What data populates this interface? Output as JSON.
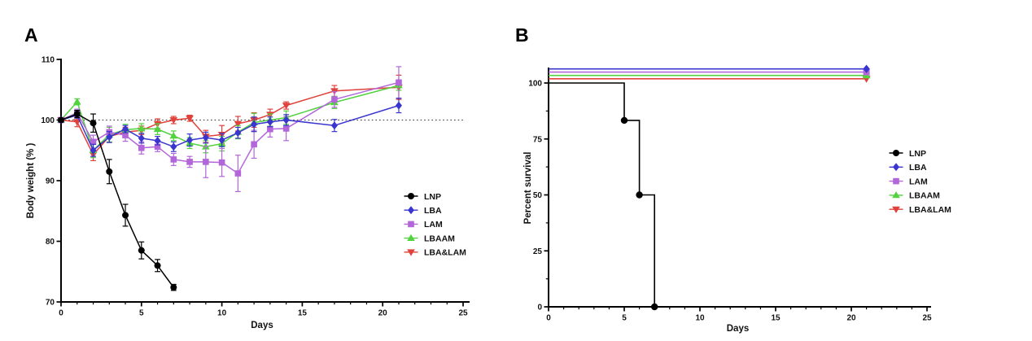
{
  "figure": {
    "panel_a_label": "A",
    "panel_b_label": "B"
  },
  "chart_data": [
    {
      "id": "panel-a",
      "type": "line",
      "title": "",
      "xlabel": "Days",
      "ylabel": "Body weight (% )",
      "xlim": [
        0,
        25
      ],
      "ylim": [
        70,
        110
      ],
      "x_major_ticks": [
        0,
        5,
        10,
        15,
        20,
        25
      ],
      "x_minor_step": 1,
      "y_major_ticks": [
        70,
        80,
        90,
        100,
        110
      ],
      "reference_line_y": 100,
      "grid": false,
      "legend_position": "inside-right",
      "legend": [
        "LNP",
        "LBA",
        "LAM",
        "LBAAM",
        "LBA&LAM"
      ],
      "series": [
        {
          "name": "LNP",
          "marker": "circle",
          "color": "#000000",
          "x": [
            0,
            1,
            2,
            3,
            4,
            5,
            6,
            7
          ],
          "y": [
            100,
            101,
            99.5,
            91.5,
            84.3,
            78.5,
            76,
            72.4
          ],
          "err": [
            0.3,
            0.6,
            1.5,
            2.0,
            1.8,
            1.4,
            1.0,
            0.5
          ]
        },
        {
          "name": "LBA",
          "marker": "diamond",
          "color": "#3a35cf",
          "x": [
            0,
            1,
            2,
            3,
            4,
            5,
            6,
            7,
            8,
            9,
            10,
            11,
            12,
            13,
            14,
            17,
            21
          ],
          "y": [
            100,
            100.8,
            95.0,
            97.2,
            98.5,
            97.0,
            96.6,
            95.6,
            96.7,
            97.1,
            96.7,
            97.9,
            99.3,
            99.7,
            100.0,
            99.1,
            102.4
          ],
          "err": [
            0.3,
            0.5,
            1.0,
            0.9,
            0.6,
            0.8,
            0.7,
            0.8,
            1.0,
            0.9,
            1.1,
            0.9,
            1.2,
            0.8,
            0.9,
            1.0,
            1.2
          ]
        },
        {
          "name": "LAM",
          "marker": "square",
          "color": "#b266d9",
          "x": [
            0,
            1,
            2,
            3,
            4,
            5,
            6,
            7,
            8,
            9,
            10,
            11,
            12,
            13,
            14,
            17,
            21
          ],
          "y": [
            100,
            101.2,
            96.4,
            98.0,
            97.5,
            95.4,
            95.6,
            93.5,
            93.1,
            93.1,
            93.0,
            91.2,
            96.0,
            98.5,
            98.6,
            103.4,
            106.2
          ],
          "err": [
            0.3,
            0.6,
            1.1,
            1.0,
            1.0,
            1.0,
            0.8,
            1.0,
            0.9,
            2.6,
            2.3,
            3.0,
            2.3,
            1.3,
            2.0,
            1.3,
            2.6
          ]
        },
        {
          "name": "LBAAM",
          "marker": "triangle-up",
          "color": "#52d23e",
          "x": [
            0,
            1,
            2,
            3,
            4,
            5,
            6,
            7,
            8,
            9,
            10,
            11,
            12,
            13,
            14,
            17,
            21
          ],
          "y": [
            100,
            103.0,
            95.0,
            97.6,
            98.4,
            98.6,
            98.5,
            97.4,
            96.2,
            95.6,
            96.1,
            98.0,
            99.6,
            100.0,
            100.4,
            102.9,
            105.7
          ],
          "err": [
            0.3,
            0.5,
            1.2,
            1.2,
            0.9,
            0.8,
            0.9,
            0.8,
            0.9,
            1.0,
            1.2,
            1.1,
            1.5,
            1.0,
            1.1,
            1.0,
            0.8
          ]
        },
        {
          "name": "LBA&LAM",
          "marker": "triangle-down",
          "color": "#e0413a",
          "x": [
            0,
            1,
            2,
            3,
            4,
            5,
            6,
            7,
            8,
            9,
            10,
            11,
            12,
            13,
            14,
            17,
            21
          ],
          "y": [
            100,
            99.7,
            94.3,
            97.3,
            98.0,
            98.3,
            99.4,
            100.0,
            100.3,
            97.3,
            97.6,
            99.4,
            100.0,
            100.9,
            102.4,
            104.8,
            105.4
          ],
          "err": [
            0.3,
            0.8,
            1.0,
            1.0,
            0.8,
            0.7,
            0.8,
            0.6,
            0.5,
            1.0,
            1.5,
            1.2,
            1.2,
            0.9,
            0.6,
            0.9,
            2.0
          ]
        }
      ]
    },
    {
      "id": "panel-b",
      "type": "line",
      "title": "",
      "xlabel": "Days",
      "ylabel": "Percent survival",
      "xlim": [
        0,
        25
      ],
      "ylim": [
        0,
        100
      ],
      "x_major_ticks": [
        0,
        5,
        10,
        15,
        20,
        25
      ],
      "x_minor_step": 1,
      "y_major_ticks": [
        0,
        25,
        50,
        75,
        100
      ],
      "y_minor_ticks": [
        12.5,
        37.5,
        62.5,
        87.5
      ],
      "grid": false,
      "legend_position": "inside-right",
      "legend": [
        "LNP",
        "LBA",
        "LAM",
        "LBAAM",
        "LBA&LAM"
      ],
      "series": [
        {
          "name": "LNP",
          "marker": "circle",
          "color": "#000000",
          "kind": "step",
          "x": [
            0,
            5,
            6,
            7
          ],
          "y": [
            100,
            83.3,
            50,
            0
          ]
        },
        {
          "name": "LBA",
          "marker": "diamond",
          "color": "#3a35cf",
          "kind": "flat",
          "survival_percent": 100,
          "x_end": 21,
          "display_y": 106.3
        },
        {
          "name": "LAM",
          "marker": "square",
          "color": "#b266d9",
          "kind": "flat",
          "survival_percent": 100,
          "x_end": 21,
          "display_y": 104.9
        },
        {
          "name": "LBAAM",
          "marker": "triangle-up",
          "color": "#52d23e",
          "kind": "flat",
          "survival_percent": 100,
          "x_end": 21,
          "display_y": 103.4
        },
        {
          "name": "LBA&LAM",
          "marker": "triangle-down",
          "color": "#e0413a",
          "kind": "flat",
          "survival_percent": 100,
          "x_end": 21,
          "display_y": 101.9
        }
      ]
    }
  ]
}
